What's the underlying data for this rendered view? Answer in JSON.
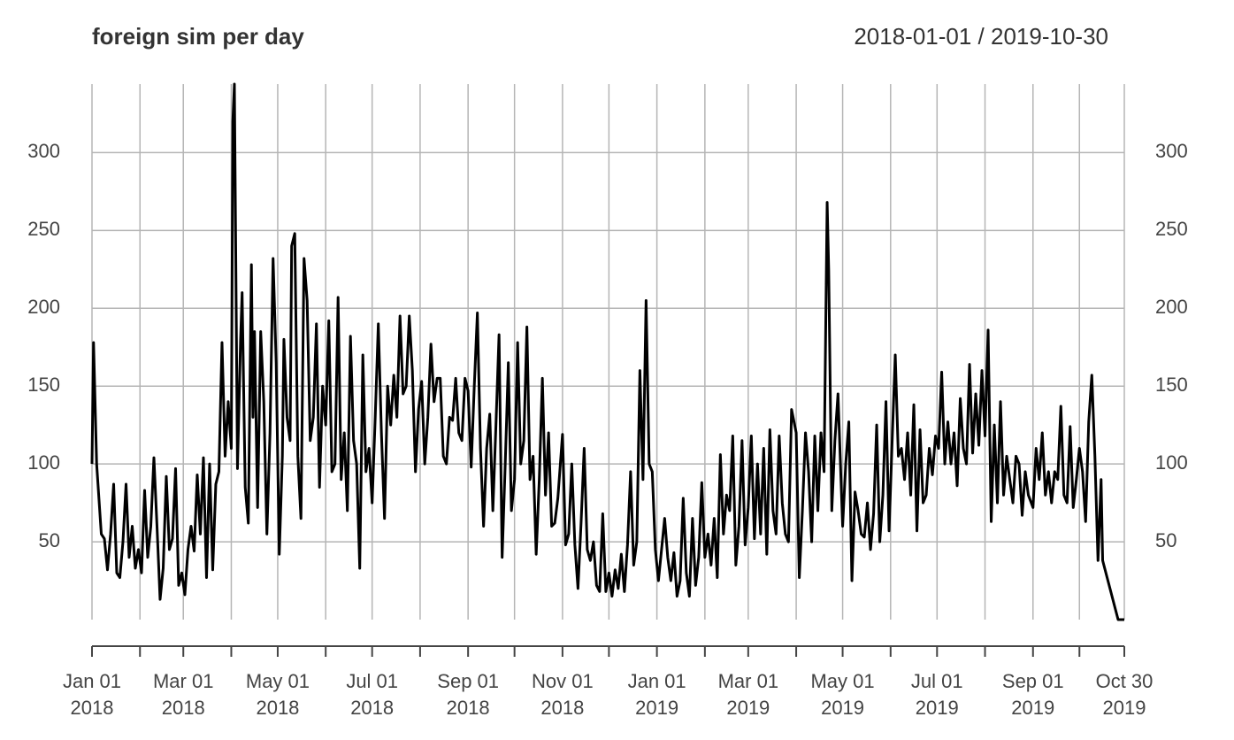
{
  "chart_data": {
    "type": "line",
    "title": "foreign sim per day",
    "subtitle": "2018-01-01 / 2019-10-30",
    "color": "#000000",
    "grid": true,
    "xlim": [
      "2018-01-01",
      "2019-10-30"
    ],
    "ylim": [
      0,
      344
    ],
    "yticks": [
      50,
      100,
      150,
      200,
      250,
      300
    ],
    "xticks": [
      {
        "value": "2018-01-01",
        "label": "Jan 01 2018"
      },
      {
        "value": "2018-03-01",
        "label": "Mar 01 2018"
      },
      {
        "value": "2018-05-01",
        "label": "May 01 2018"
      },
      {
        "value": "2018-07-01",
        "label": "Jul 01 2018"
      },
      {
        "value": "2018-09-01",
        "label": "Sep 01 2018"
      },
      {
        "value": "2018-11-01",
        "label": "Nov 01 2018"
      },
      {
        "value": "2019-01-01",
        "label": "Jan 01 2019"
      },
      {
        "value": "2019-03-01",
        "label": "Mar 01 2019"
      },
      {
        "value": "2019-05-01",
        "label": "May 01 2019"
      },
      {
        "value": "2019-07-01",
        "label": "Jul 01 2019"
      },
      {
        "value": "2019-09-01",
        "label": "Sep 01 2019"
      },
      {
        "value": "2019-10-30",
        "label": "Oct 30 2019"
      }
    ],
    "xminorticks": [
      "2018-02-01",
      "2018-04-01",
      "2018-06-01",
      "2018-08-01",
      "2018-10-01",
      "2018-12-01",
      "2019-02-01",
      "2019-04-01",
      "2019-06-01",
      "2019-08-01",
      "2019-10-01"
    ],
    "x": [
      "2018-01-01",
      "2018-01-02",
      "2018-01-04",
      "2018-01-07",
      "2018-01-09",
      "2018-01-11",
      "2018-01-13",
      "2018-01-15",
      "2018-01-17",
      "2018-01-19",
      "2018-01-21",
      "2018-01-23",
      "2018-01-25",
      "2018-01-27",
      "2018-01-29",
      "2018-01-31",
      "2018-02-02",
      "2018-02-04",
      "2018-02-06",
      "2018-02-08",
      "2018-02-10",
      "2018-02-12",
      "2018-02-14",
      "2018-02-16",
      "2018-02-18",
      "2018-02-20",
      "2018-02-22",
      "2018-02-24",
      "2018-02-26",
      "2018-02-28",
      "2018-03-02",
      "2018-03-04",
      "2018-03-06",
      "2018-03-08",
      "2018-03-10",
      "2018-03-12",
      "2018-03-14",
      "2018-03-16",
      "2018-03-18",
      "2018-03-20",
      "2018-03-22",
      "2018-03-24",
      "2018-03-26",
      "2018-03-28",
      "2018-03-30",
      "2018-04-01",
      "2018-04-02",
      "2018-04-03",
      "2018-04-05",
      "2018-04-07",
      "2018-04-08",
      "2018-04-10",
      "2018-04-12",
      "2018-04-14",
      "2018-04-15",
      "2018-04-16",
      "2018-04-18",
      "2018-04-20",
      "2018-04-22",
      "2018-04-24",
      "2018-04-26",
      "2018-04-28",
      "2018-04-30",
      "2018-05-02",
      "2018-05-04",
      "2018-05-05",
      "2018-05-07",
      "2018-05-09",
      "2018-05-10",
      "2018-05-12",
      "2018-05-14",
      "2018-05-16",
      "2018-05-18",
      "2018-05-20",
      "2018-05-22",
      "2018-05-24",
      "2018-05-26",
      "2018-05-28",
      "2018-05-30",
      "2018-06-01",
      "2018-06-03",
      "2018-06-05",
      "2018-06-07",
      "2018-06-09",
      "2018-06-11",
      "2018-06-13",
      "2018-06-15",
      "2018-06-17",
      "2018-06-19",
      "2018-06-21",
      "2018-06-23",
      "2018-06-25",
      "2018-06-27",
      "2018-06-29",
      "2018-07-01",
      "2018-07-03",
      "2018-07-05",
      "2018-07-07",
      "2018-07-09",
      "2018-07-11",
      "2018-07-13",
      "2018-07-15",
      "2018-07-17",
      "2018-07-19",
      "2018-07-21",
      "2018-07-23",
      "2018-07-25",
      "2018-07-27",
      "2018-07-29",
      "2018-07-31",
      "2018-08-02",
      "2018-08-04",
      "2018-08-06",
      "2018-08-08",
      "2018-08-10",
      "2018-08-12",
      "2018-08-14",
      "2018-08-16",
      "2018-08-18",
      "2018-08-20",
      "2018-08-22",
      "2018-08-24",
      "2018-08-26",
      "2018-08-28",
      "2018-08-30",
      "2018-09-01",
      "2018-09-03",
      "2018-09-05",
      "2018-09-07",
      "2018-09-09",
      "2018-09-11",
      "2018-09-13",
      "2018-09-15",
      "2018-09-17",
      "2018-09-19",
      "2018-09-21",
      "2018-09-23",
      "2018-09-25",
      "2018-09-27",
      "2018-09-29",
      "2018-10-01",
      "2018-10-03",
      "2018-10-05",
      "2018-10-07",
      "2018-10-09",
      "2018-10-11",
      "2018-10-13",
      "2018-10-15",
      "2018-10-17",
      "2018-10-19",
      "2018-10-21",
      "2018-10-23",
      "2018-10-25",
      "2018-10-27",
      "2018-10-29",
      "2018-11-01",
      "2018-11-03",
      "2018-11-05",
      "2018-11-07",
      "2018-11-09",
      "2018-11-11",
      "2018-11-13",
      "2018-11-15",
      "2018-11-17",
      "2018-11-19",
      "2018-11-21",
      "2018-11-23",
      "2018-11-25",
      "2018-11-27",
      "2018-11-29",
      "2018-12-01",
      "2018-12-03",
      "2018-12-05",
      "2018-12-07",
      "2018-12-09",
      "2018-12-11",
      "2018-12-13",
      "2018-12-15",
      "2018-12-17",
      "2018-12-19",
      "2018-12-21",
      "2018-12-23",
      "2018-12-25",
      "2018-12-27",
      "2018-12-29",
      "2018-12-31",
      "2019-01-02",
      "2019-01-04",
      "2019-01-06",
      "2019-01-08",
      "2019-01-10",
      "2019-01-12",
      "2019-01-14",
      "2019-01-16",
      "2019-01-18",
      "2019-01-20",
      "2019-01-22",
      "2019-01-24",
      "2019-01-26",
      "2019-01-28",
      "2019-01-30",
      "2019-02-01",
      "2019-02-03",
      "2019-02-05",
      "2019-02-07",
      "2019-02-09",
      "2019-02-11",
      "2019-02-13",
      "2019-02-15",
      "2019-02-17",
      "2019-02-19",
      "2019-02-21",
      "2019-02-23",
      "2019-02-25",
      "2019-02-27",
      "2019-03-01",
      "2019-03-03",
      "2019-03-05",
      "2019-03-07",
      "2019-03-09",
      "2019-03-11",
      "2019-03-13",
      "2019-03-15",
      "2019-03-17",
      "2019-03-19",
      "2019-03-21",
      "2019-03-23",
      "2019-03-25",
      "2019-03-27",
      "2019-03-29",
      "2019-04-01",
      "2019-04-03",
      "2019-04-05",
      "2019-04-07",
      "2019-04-09",
      "2019-04-11",
      "2019-04-13",
      "2019-04-15",
      "2019-04-17",
      "2019-04-19",
      "2019-04-21",
      "2019-04-22",
      "2019-04-24",
      "2019-04-26",
      "2019-04-28",
      "2019-05-01",
      "2019-05-03",
      "2019-05-05",
      "2019-05-07",
      "2019-05-09",
      "2019-05-11",
      "2019-05-13",
      "2019-05-15",
      "2019-05-17",
      "2019-05-19",
      "2019-05-21",
      "2019-05-23",
      "2019-05-25",
      "2019-05-27",
      "2019-05-29",
      "2019-05-31",
      "2019-06-02",
      "2019-06-04",
      "2019-06-06",
      "2019-06-08",
      "2019-06-10",
      "2019-06-12",
      "2019-06-14",
      "2019-06-16",
      "2019-06-18",
      "2019-06-20",
      "2019-06-22",
      "2019-06-24",
      "2019-06-26",
      "2019-06-28",
      "2019-06-30",
      "2019-07-02",
      "2019-07-04",
      "2019-07-06",
      "2019-07-08",
      "2019-07-10",
      "2019-07-12",
      "2019-07-14",
      "2019-07-16",
      "2019-07-18",
      "2019-07-20",
      "2019-07-22",
      "2019-07-24",
      "2019-07-26",
      "2019-07-28",
      "2019-07-30",
      "2019-08-01",
      "2019-08-03",
      "2019-08-05",
      "2019-08-07",
      "2019-08-09",
      "2019-08-11",
      "2019-08-13",
      "2019-08-15",
      "2019-08-17",
      "2019-08-19",
      "2019-08-21",
      "2019-08-23",
      "2019-08-25",
      "2019-08-27",
      "2019-08-29",
      "2019-09-01",
      "2019-09-03",
      "2019-09-05",
      "2019-09-07",
      "2019-09-09",
      "2019-09-11",
      "2019-09-13",
      "2019-09-15",
      "2019-09-17",
      "2019-09-19",
      "2019-09-21",
      "2019-09-23",
      "2019-09-25",
      "2019-09-27",
      "2019-09-29",
      "2019-10-01",
      "2019-10-03",
      "2019-10-05",
      "2019-10-07",
      "2019-10-09",
      "2019-10-11",
      "2019-10-13",
      "2019-10-15",
      "2019-10-16",
      "2019-10-26",
      "2019-10-30"
    ],
    "values": [
      100,
      178,
      100,
      55,
      52,
      32,
      55,
      87,
      30,
      27,
      50,
      87,
      40,
      60,
      33,
      45,
      30,
      83,
      40,
      60,
      104,
      60,
      13,
      33,
      92,
      45,
      52,
      97,
      22,
      30,
      16,
      45,
      60,
      44,
      93,
      55,
      104,
      27,
      100,
      32,
      87,
      95,
      178,
      105,
      140,
      110,
      320,
      344,
      97,
      180,
      210,
      85,
      62,
      228,
      130,
      185,
      72,
      185,
      140,
      55,
      120,
      232,
      165,
      42,
      105,
      180,
      130,
      115,
      240,
      248,
      105,
      65,
      232,
      205,
      115,
      130,
      190,
      85,
      150,
      125,
      192,
      95,
      100,
      207,
      90,
      120,
      70,
      182,
      115,
      100,
      33,
      170,
      95,
      110,
      75,
      130,
      190,
      120,
      65,
      150,
      125,
      157,
      130,
      195,
      145,
      150,
      195,
      160,
      95,
      135,
      153,
      100,
      130,
      177,
      140,
      155,
      155,
      105,
      100,
      130,
      128,
      155,
      120,
      115,
      155,
      147,
      98,
      150,
      197,
      110,
      60,
      110,
      132,
      70,
      125,
      183,
      40,
      100,
      165,
      70,
      90,
      178,
      100,
      115,
      188,
      90,
      105,
      42,
      90,
      155,
      80,
      120,
      60,
      62,
      78,
      119,
      48,
      55,
      100,
      48,
      20,
      62,
      110,
      45,
      38,
      50,
      22,
      18,
      68,
      18,
      30,
      15,
      32,
      20,
      42,
      18,
      48,
      95,
      35,
      50,
      160,
      90,
      205,
      100,
      95,
      45,
      25,
      45,
      65,
      40,
      25,
      43,
      15,
      25,
      78,
      30,
      15,
      65,
      22,
      40,
      88,
      40,
      55,
      35,
      65,
      27,
      106,
      55,
      80,
      70,
      118,
      35,
      60,
      115,
      48,
      72,
      118,
      52,
      100,
      55,
      110,
      42,
      122,
      70,
      55,
      118,
      75,
      55,
      50,
      135,
      120,
      27,
      70,
      120,
      95,
      50,
      118,
      70,
      120,
      95,
      268,
      225,
      70,
      115,
      145,
      60,
      100,
      127,
      25,
      82,
      70,
      55,
      53,
      75,
      45,
      68,
      125,
      50,
      80,
      140,
      57,
      115,
      170,
      105,
      110,
      90,
      120,
      80,
      138,
      57,
      122,
      75,
      80,
      110,
      93,
      118,
      110,
      159,
      100,
      127,
      100,
      120,
      86,
      142,
      110,
      100,
      164,
      107,
      145,
      112,
      160,
      118,
      186,
      63,
      125,
      75,
      140,
      80,
      105,
      90,
      75,
      105,
      100,
      67,
      95,
      80,
      72,
      110,
      90,
      120,
      80,
      95,
      75,
      95,
      90,
      137,
      80,
      75,
      124,
      72,
      90,
      110,
      95,
      63,
      127,
      157,
      105,
      38,
      90,
      38,
      0,
      0
    ]
  }
}
